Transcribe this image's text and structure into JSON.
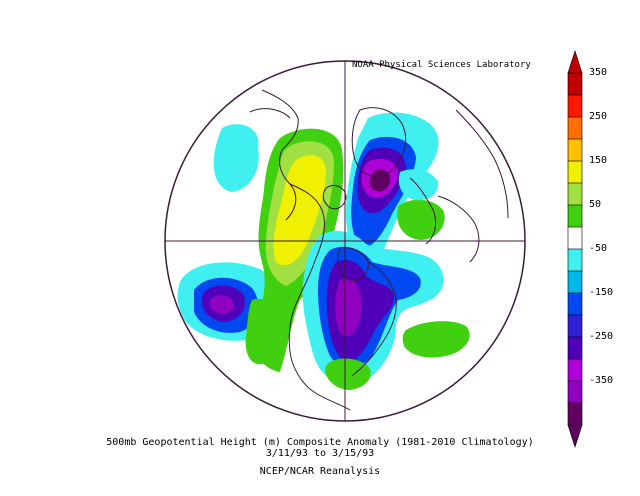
{
  "map": {
    "credit": "NOAA Physical Sciences Laboratory",
    "caption_line1": "500mb Geopotential Height (m) Composite Anomaly (1981-2010 Climatology)",
    "caption_line2": "3/11/93  to 3/15/93",
    "caption_line3": "NCEP/NCAR Reanalysis",
    "projection": "north-polar-stereographic",
    "variable": "500mb geopotential height anomaly",
    "units": "m",
    "dates": [
      "3/11/93",
      "3/15/93"
    ]
  },
  "colorbar": {
    "labels": [
      "350",
      "250",
      "150",
      "50",
      "-50",
      "-150",
      "-250",
      "-350"
    ],
    "levels": [
      -350,
      -300,
      -250,
      -200,
      -150,
      -100,
      -50,
      50,
      100,
      150,
      200,
      250,
      300,
      350
    ],
    "colors": [
      "#600060",
      "#9000c0",
      "#b000d8",
      "#5000b8",
      "#3020d8",
      "#0048f0",
      "#00b8e8",
      "#40f0f0",
      "#ffffff",
      "#40d010",
      "#a0e040",
      "#f0f000",
      "#ffc000",
      "#ff7000",
      "#ff1800",
      "#c00000"
    ]
  }
}
